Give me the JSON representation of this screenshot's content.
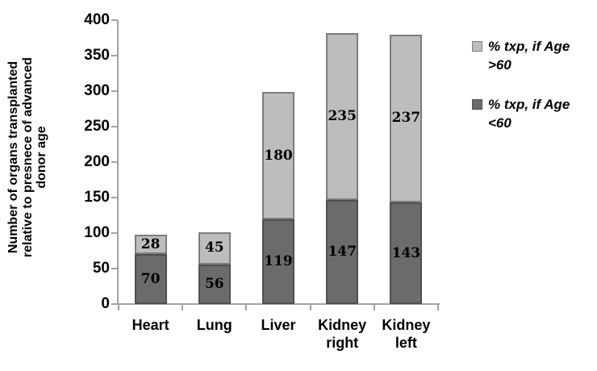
{
  "figure": {
    "background": "#ffffff"
  },
  "chart_data": {
    "type": "bar",
    "subtype": "stacked",
    "title": "",
    "xlabel": "",
    "ylabel": "Number of organs transplanted\nrelative to presnece of advanced\ndonor age",
    "ylim": [
      0,
      400
    ],
    "yticks": [
      0,
      50,
      100,
      150,
      200,
      250,
      300,
      350,
      400
    ],
    "grid": false,
    "legend_position": "right",
    "categories": [
      "Heart",
      "Lung",
      "Liver",
      "Kidney\nright",
      "Kidney\nleft"
    ],
    "series": [
      {
        "name": "% txp, if Age <60",
        "color": "#6b6b6b",
        "border": "#4f4f4f",
        "values": [
          70,
          56,
          119,
          147,
          143
        ]
      },
      {
        "name": "% txp, if Age >60",
        "color": "#bdbdbd",
        "border": "#7d7d7d",
        "values": [
          28,
          45,
          180,
          235,
          237
        ]
      }
    ],
    "bar_labels_shown": true,
    "legend": [
      {
        "label": "% txp, if Age >60",
        "color": "#bdbdbd",
        "border": "#7d7d7d"
      },
      {
        "label": "% txp, if Age <60",
        "color": "#6b6b6b",
        "border": "#4f4f4f"
      }
    ],
    "axis_color": "#a3a3a3"
  }
}
